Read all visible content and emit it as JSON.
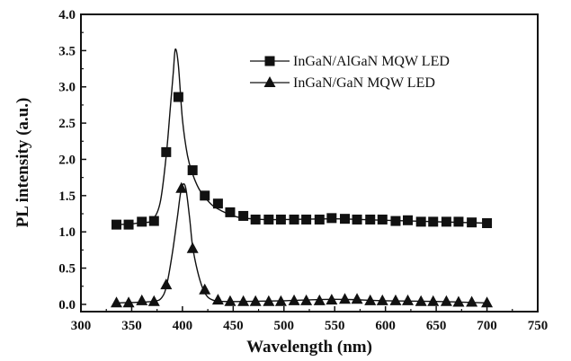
{
  "chart_data": {
    "type": "line",
    "xlabel": "Wavelength (nm)",
    "ylabel": "PL intensity (a.u.)",
    "xlim": [
      300,
      750
    ],
    "ylim": [
      -0.1,
      4.0
    ],
    "xticks": [
      300,
      350,
      400,
      450,
      500,
      550,
      600,
      650,
      700,
      750
    ],
    "yticks": [
      0.0,
      0.5,
      1.0,
      1.5,
      2.0,
      2.5,
      3.0,
      3.5,
      4.0
    ],
    "xtick_labels": [
      "300",
      "350",
      "400",
      "450",
      "500",
      "550",
      "600",
      "650",
      "700",
      "750"
    ],
    "ytick_labels": [
      "0.0",
      "0.5",
      "1.0",
      "1.5",
      "2.0",
      "2.5",
      "3.0",
      "3.5",
      "4.0"
    ],
    "legend_position": "top-right",
    "series": [
      {
        "name": "InGaN/AlGaN MQW LED",
        "marker": "square",
        "color": "#111111",
        "markers": {
          "x": [
            335,
            347,
            360,
            372,
            384,
            396,
            410,
            422,
            435,
            447,
            460,
            472,
            485,
            497,
            510,
            522,
            535,
            547,
            560,
            572,
            585,
            597,
            610,
            622,
            635,
            647,
            660,
            672,
            685,
            700
          ],
          "y": [
            1.1,
            1.1,
            1.14,
            1.15,
            2.1,
            2.86,
            1.85,
            1.5,
            1.39,
            1.27,
            1.22,
            1.17,
            1.17,
            1.17,
            1.17,
            1.17,
            1.17,
            1.19,
            1.18,
            1.17,
            1.17,
            1.17,
            1.15,
            1.16,
            1.14,
            1.14,
            1.14,
            1.14,
            1.13,
            1.12
          ]
        },
        "curve": {
          "x": [
            335,
            350,
            360,
            370,
            378,
            384,
            388,
            391,
            393,
            396,
            400,
            405,
            410,
            416,
            422,
            430,
            440,
            450,
            460,
            480,
            500,
            550,
            600,
            650,
            700
          ],
          "y": [
            1.1,
            1.11,
            1.13,
            1.16,
            1.4,
            2.05,
            2.7,
            3.2,
            3.52,
            3.3,
            2.55,
            2.05,
            1.8,
            1.6,
            1.48,
            1.36,
            1.28,
            1.22,
            1.19,
            1.17,
            1.17,
            1.18,
            1.16,
            1.14,
            1.12
          ]
        }
      },
      {
        "name": "InGaN/GaN MQW LED",
        "marker": "triangle",
        "color": "#111111",
        "markers": {
          "x": [
            335,
            347,
            360,
            372,
            384,
            399,
            410,
            422,
            435,
            447,
            460,
            472,
            485,
            497,
            510,
            522,
            535,
            547,
            560,
            572,
            585,
            597,
            610,
            622,
            635,
            647,
            660,
            672,
            685,
            700
          ],
          "y": [
            0.02,
            0.02,
            0.05,
            0.04,
            0.27,
            1.6,
            0.77,
            0.2,
            0.06,
            0.04,
            0.04,
            0.04,
            0.04,
            0.04,
            0.05,
            0.05,
            0.05,
            0.06,
            0.07,
            0.07,
            0.05,
            0.05,
            0.05,
            0.05,
            0.04,
            0.04,
            0.04,
            0.03,
            0.03,
            0.02
          ]
        },
        "curve": {
          "x": [
            335,
            370,
            380,
            385,
            390,
            395,
            399,
            403,
            407,
            410,
            415,
            420,
            425,
            432,
            440,
            460,
            500,
            550,
            600,
            650,
            700
          ],
          "y": [
            0.02,
            0.04,
            0.1,
            0.3,
            0.7,
            1.2,
            1.6,
            1.62,
            1.2,
            0.8,
            0.45,
            0.22,
            0.1,
            0.05,
            0.04,
            0.04,
            0.05,
            0.07,
            0.05,
            0.04,
            0.02
          ]
        }
      }
    ]
  }
}
